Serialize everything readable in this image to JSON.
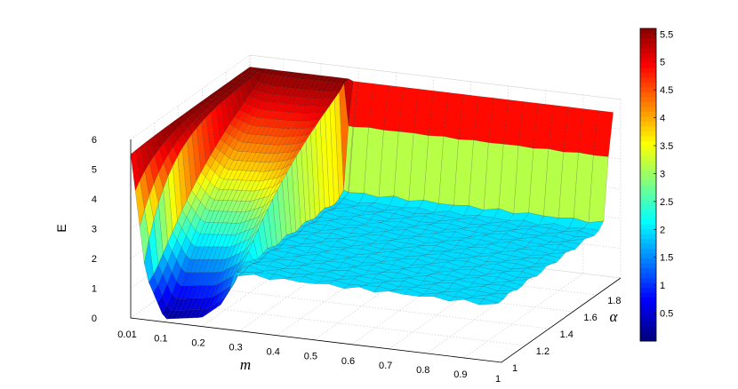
{
  "chart_data": {
    "type": "surface3d",
    "title": "",
    "xlabel": "m",
    "ylabel": "α",
    "zlabel": "E",
    "x_ticks": [
      "0.01",
      "0.1",
      "0.2",
      "0.3",
      "0.4",
      "0.5",
      "0.6",
      "0.7",
      "0.8",
      "0.9",
      "1"
    ],
    "y_ticks": [
      "1",
      "1.2",
      "1.4",
      "1.6",
      "1.8"
    ],
    "z_ticks": [
      "0",
      "1",
      "2",
      "3",
      "4",
      "5",
      "6"
    ],
    "xlim": [
      0.01,
      1
    ],
    "ylim": [
      1,
      2
    ],
    "zlim": [
      0,
      6
    ],
    "grid": true,
    "colormap": "jet",
    "colorbar": {
      "ticks": [
        "0.5",
        "1",
        "1.5",
        "2",
        "2.5",
        "3",
        "3.5",
        "4",
        "4.5",
        "5",
        "5.5"
      ],
      "clim": [
        0,
        5.6
      ],
      "placement": "right"
    },
    "surface_profile": {
      "description_m": [
        0.01,
        0.05,
        0.1,
        0.15,
        0.2,
        0.25,
        0.3,
        1.0
      ],
      "E_at_alpha_1": [
        5.5,
        1.5,
        0.1,
        0.2,
        0.3,
        0.8,
        1.9,
        1.9
      ],
      "E_at_alpha_2": [
        5.7,
        5.6,
        5.6,
        5.6,
        5.6,
        5.6,
        5.6,
        5.6
      ],
      "plateau_E": 1.9,
      "back_ridge_E": 5.6
    }
  }
}
